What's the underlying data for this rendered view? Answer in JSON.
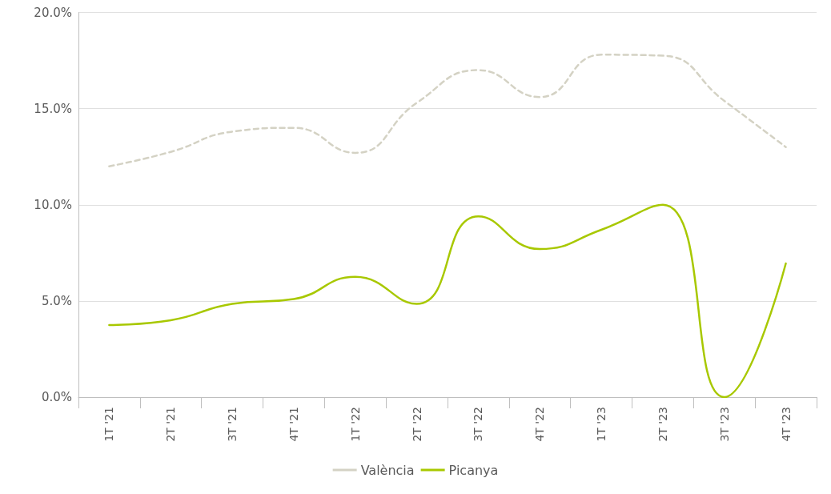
{
  "chart_data": {
    "type": "line",
    "categories": [
      "1T '21",
      "2T '21",
      "3T '21",
      "4T '21",
      "1T '22",
      "2T '22",
      "3T '22",
      "4T '22",
      "1T '23",
      "2T '23",
      "3T '23",
      "4T '23"
    ],
    "series": [
      {
        "name": "València",
        "color": "#d4d2c4",
        "line_style": "dashed",
        "values": [
          12.0,
          12.75,
          13.8,
          14.0,
          12.7,
          15.3,
          17.0,
          15.6,
          17.8,
          17.75,
          15.4,
          13.0
        ]
      },
      {
        "name": "Picanya",
        "color": "#a8c800",
        "line_style": "solid",
        "values": [
          3.75,
          4.0,
          4.85,
          5.1,
          6.25,
          4.85,
          9.4,
          7.7,
          8.7,
          10.0,
          0.0,
          6.95
        ]
      }
    ],
    "ylim": [
      0,
      20
    ],
    "yticks": [
      {
        "value": 0,
        "label": "0.0%"
      },
      {
        "value": 5,
        "label": "5.0%"
      },
      {
        "value": 10,
        "label": "10.0%"
      },
      {
        "value": 15,
        "label": "15.0%"
      },
      {
        "value": 20,
        "label": "20.0%"
      }
    ],
    "grid": "y",
    "legend": "bottom",
    "marker": "none"
  }
}
